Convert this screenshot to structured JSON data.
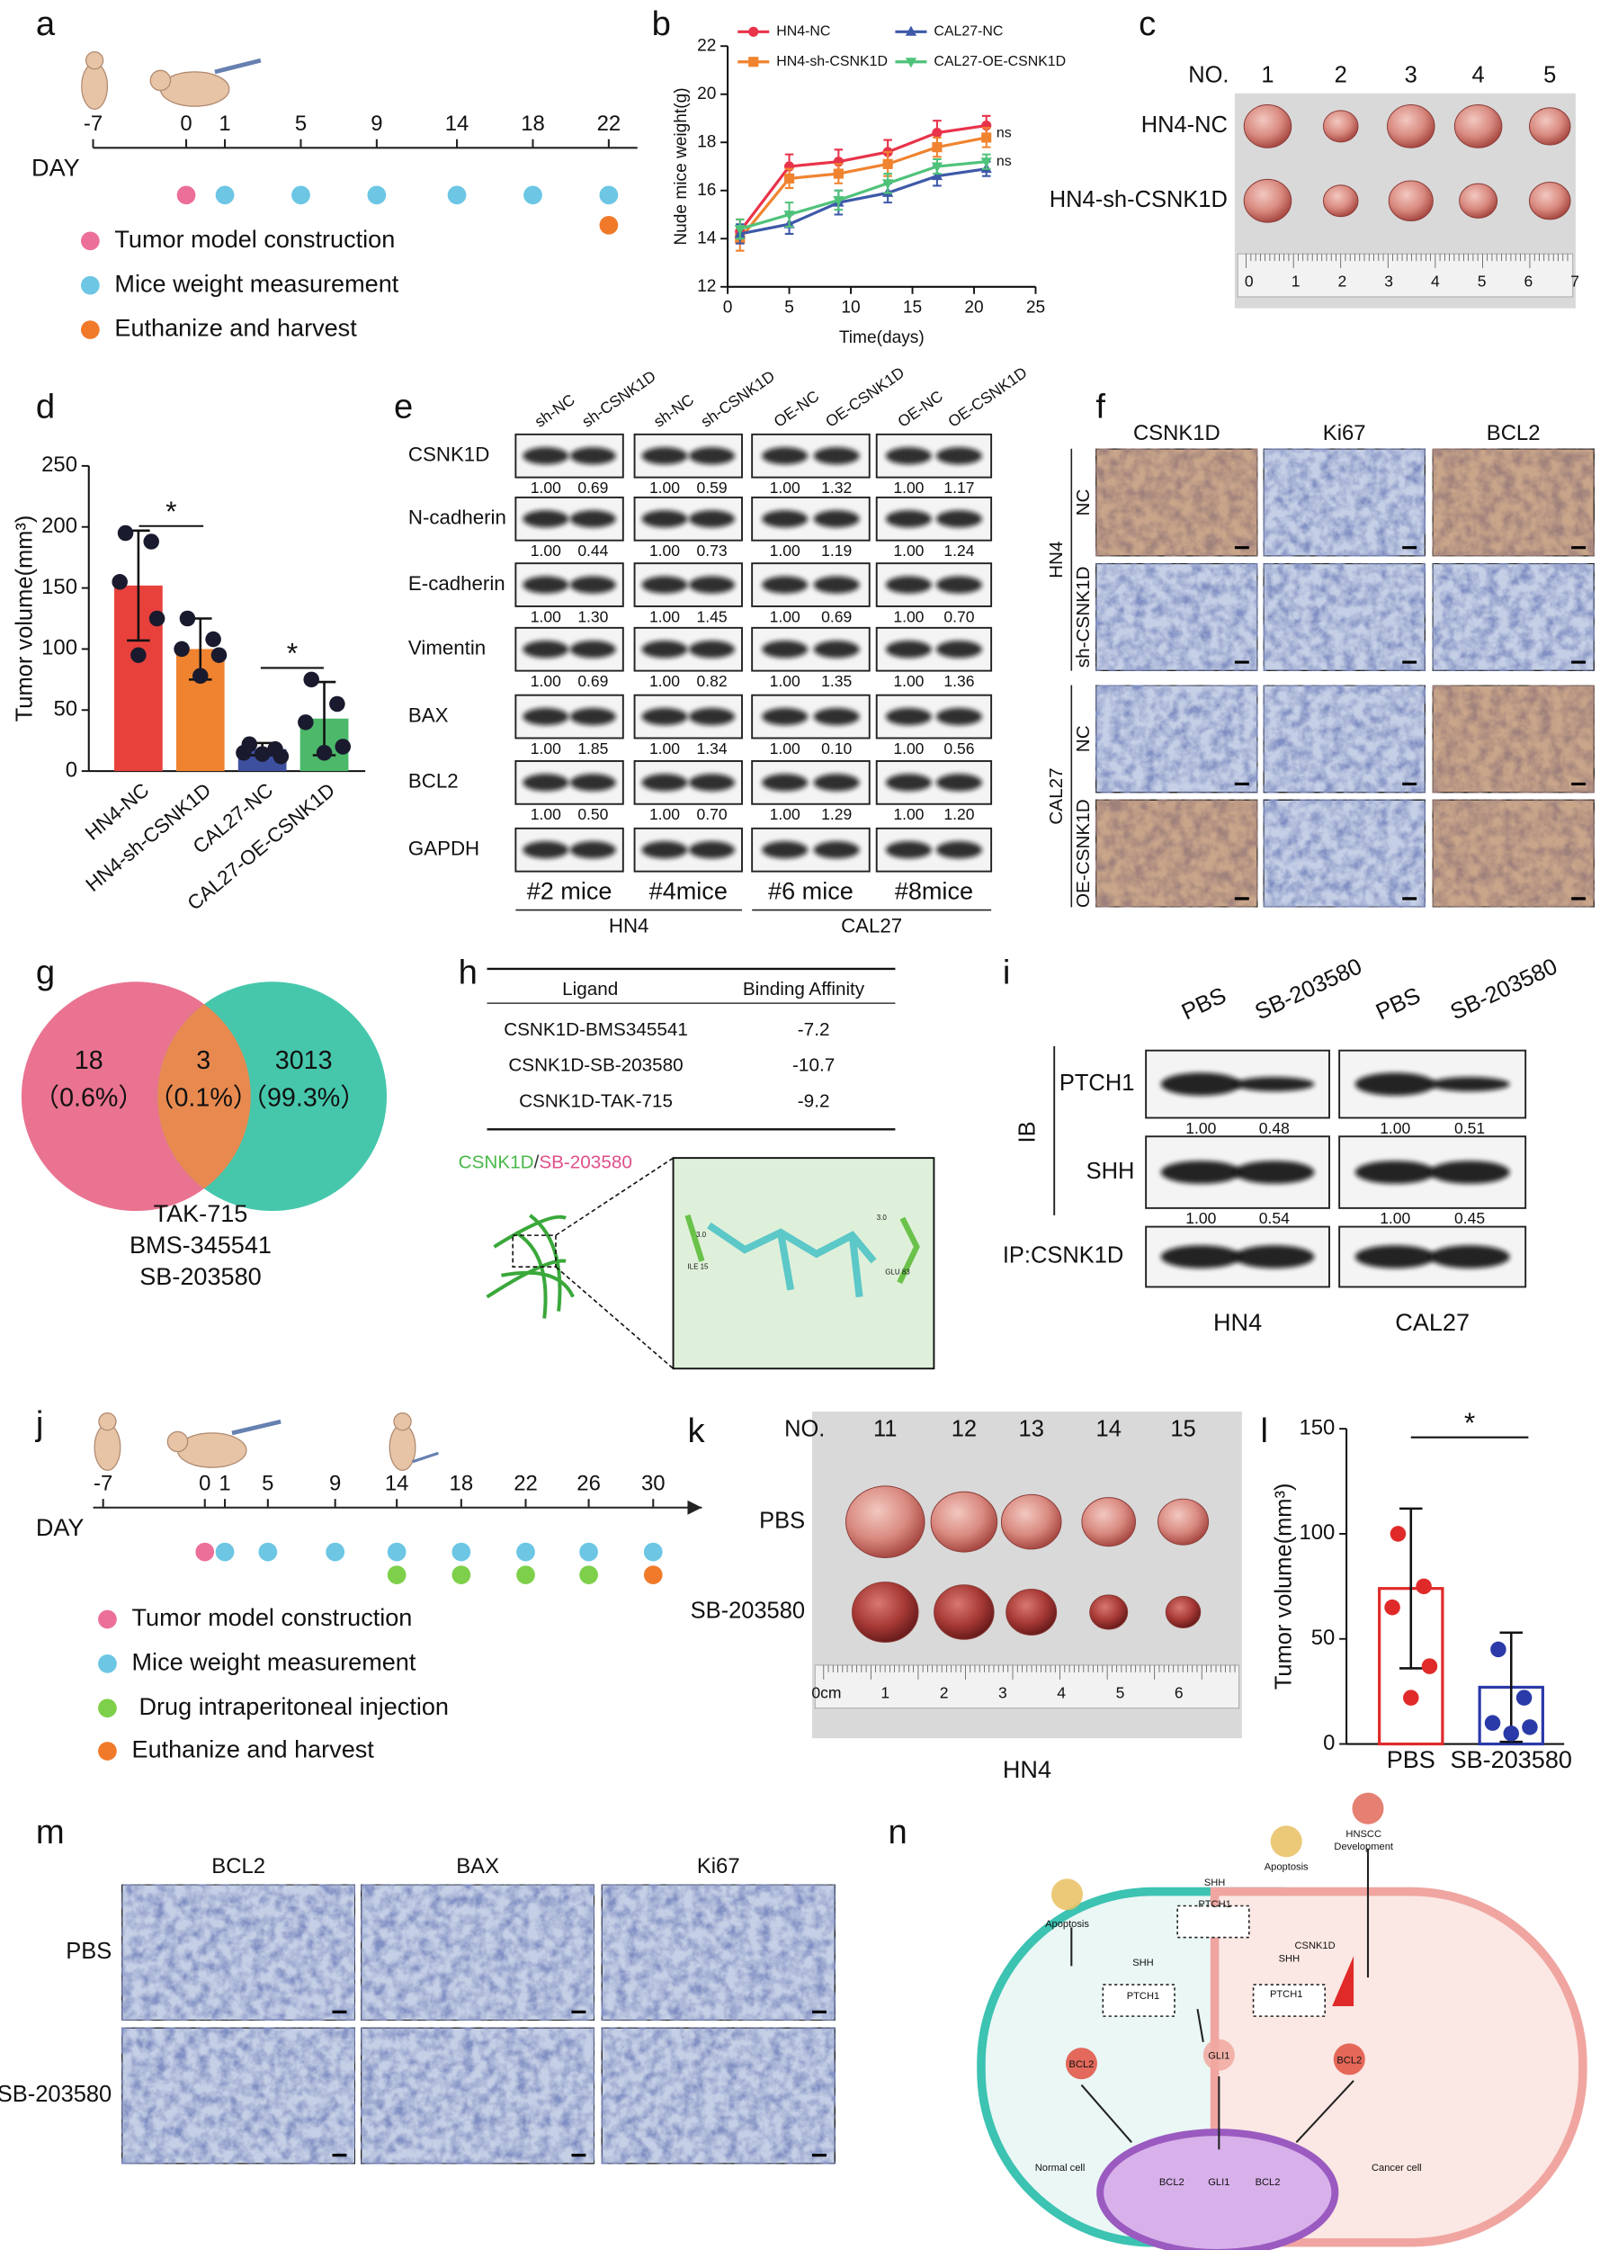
{
  "panel_labels": [
    "a",
    "b",
    "c",
    "d",
    "e",
    "f",
    "g",
    "h",
    "i",
    "j",
    "k",
    "l",
    "m",
    "n"
  ],
  "timeline_a": {
    "day_label": "DAY",
    "days": [
      "-7",
      "0",
      "1",
      "5",
      "9",
      "14",
      "18",
      "22"
    ],
    "legend": [
      "Tumor model construction",
      "Mice weight measurement",
      "Euthanize and harvest"
    ]
  },
  "photo_c": {
    "no_label": "NO.",
    "numbers": [
      "1",
      "2",
      "3",
      "4",
      "5"
    ],
    "rows": [
      "HN4-NC",
      "HN4-sh-CSNK1D"
    ],
    "ruler": [
      "0",
      "1",
      "2",
      "3",
      "4",
      "5",
      "6",
      "7"
    ]
  },
  "blot_e": {
    "columns": [
      "sh-NC",
      "sh-CSNK1D",
      "sh-NC",
      "sh-CSNK1D",
      "OE-NC",
      "OE-CSNK1D",
      "OE-NC",
      "OE-CSNK1D"
    ],
    "rows": [
      {
        "name": "CSNK1D",
        "values": [
          "1.00",
          "0.69",
          "1.00",
          "0.59",
          "1.00",
          "1.32",
          "1.00",
          "1.17"
        ]
      },
      {
        "name": "N-cadherin",
        "values": [
          "1.00",
          "0.44",
          "1.00",
          "0.73",
          "1.00",
          "1.19",
          "1.00",
          "1.24"
        ]
      },
      {
        "name": "E-cadherin",
        "values": [
          "1.00",
          "1.30",
          "1.00",
          "1.45",
          "1.00",
          "0.69",
          "1.00",
          "0.70"
        ]
      },
      {
        "name": "Vimentin",
        "values": [
          "1.00",
          "0.69",
          "1.00",
          "0.82",
          "1.00",
          "1.35",
          "1.00",
          "1.36"
        ]
      },
      {
        "name": "BAX",
        "values": [
          "1.00",
          "1.85",
          "1.00",
          "1.34",
          "1.00",
          "0.10",
          "1.00",
          "0.56"
        ]
      },
      {
        "name": "BCL2",
        "values": [
          "1.00",
          "0.50",
          "1.00",
          "0.70",
          "1.00",
          "1.29",
          "1.00",
          "1.20"
        ]
      },
      {
        "name": "GAPDH"
      }
    ],
    "mice": [
      "#2 mice",
      "#4mice",
      "#6 mice",
      "#8mice"
    ],
    "groups": [
      "HN4",
      "CAL27"
    ]
  },
  "ihc_f": {
    "columns": [
      "CSNK1D",
      "Ki67",
      "BCL2"
    ],
    "rows": [
      "NC",
      "sh-CSNK1D",
      "NC",
      "OE-CSNK1D"
    ],
    "groups": [
      "HN4",
      "CAL27"
    ]
  },
  "venn_g": {
    "sets": [
      {
        "count": "18",
        "percent": "（0.6%）"
      },
      {
        "count": "3",
        "percent": "（0.1%）"
      },
      {
        "count": "3013",
        "percent": "（99.3%）"
      }
    ],
    "drugs": [
      "TAK-715",
      "BMS-345541",
      "SB-203580"
    ]
  },
  "table_h": {
    "header": [
      "Ligand",
      "Binding Affinity"
    ],
    "rows": [
      [
        "CSNK1D-BMS345541",
        "-7.2"
      ],
      [
        "CSNK1D-SB-203580",
        "-10.7"
      ],
      [
        "CSNK1D-TAK-715",
        "-9.2"
      ]
    ],
    "protein": "CSNK1D",
    "slash": "/",
    "ligand": "SB-203580",
    "residues": [
      "ILE 15",
      "GLU 83"
    ],
    "distances": [
      "3.0",
      "3.0"
    ]
  },
  "blot_i": {
    "columns": [
      "PBS",
      "SB-203580",
      "PBS",
      "SB-203580"
    ],
    "ib": "IB",
    "rows": [
      {
        "name": "PTCH1",
        "values": [
          "1.00",
          "0.48",
          "1.00",
          "0.51"
        ]
      },
      {
        "name": "SHH",
        "values": [
          "1.00",
          "0.54",
          "1.00",
          "0.45"
        ]
      },
      {
        "name": "IP:CSNK1D"
      }
    ],
    "groups": [
      "HN4",
      "CAL27"
    ]
  },
  "timeline_j": {
    "day_label": "DAY",
    "days": [
      "-7",
      "0",
      "1",
      "5",
      "9",
      "14",
      "18",
      "22",
      "26",
      "30"
    ],
    "legend": [
      "Tumor model construction",
      "Mice weight measurement",
      "Drug intraperitoneal injection",
      "Euthanize and harvest"
    ]
  },
  "photo_k": {
    "no_label": "NO.",
    "numbers": [
      "11",
      "12",
      "13",
      "14",
      "15"
    ],
    "rows": [
      "PBS",
      "SB-203580"
    ],
    "ruler": [
      "0cm",
      "1",
      "2",
      "3",
      "4",
      "5",
      "6"
    ],
    "caption": "HN4"
  },
  "ihc_m": {
    "columns": [
      "BCL2",
      "BAX",
      "Ki67"
    ],
    "rows": [
      "PBS",
      "SB-203580"
    ]
  },
  "diagram_n": {
    "labels": [
      "Apoptosis",
      "SHH",
      "PTCH1",
      "Apoptosis",
      "HNSCC",
      "Development",
      "SHH",
      "PTCH1",
      "SHH",
      "CSNK1D",
      "PTCH1",
      "BCL2",
      "GLI1",
      "BCL2",
      "Normal cell",
      "BCL2",
      "GLI1",
      "BCL2",
      "Cancer cell"
    ]
  },
  "chart_data": [
    {
      "type": "line",
      "xlabel": "Time(days)",
      "ylabel": "Nude mice weight(g)",
      "x": [
        1,
        5,
        9,
        13,
        17,
        21
      ],
      "xlim": [
        0,
        25
      ],
      "xticks": [
        0,
        5,
        10,
        15,
        20,
        25
      ],
      "ylim": [
        12,
        22
      ],
      "yticks": [
        12,
        14,
        16,
        18,
        20,
        22
      ],
      "series": [
        {
          "name": "HN4-NC",
          "color": "#e8334a",
          "marker": "circle",
          "values": [
            14.3,
            17.0,
            17.2,
            17.6,
            18.4,
            18.7
          ],
          "errors": [
            0.5,
            0.5,
            0.5,
            0.5,
            0.5,
            0.4
          ]
        },
        {
          "name": "HN4-sh-CSNK1D",
          "color": "#f0832f",
          "marker": "square",
          "values": [
            14.0,
            16.5,
            16.7,
            17.1,
            17.8,
            18.2
          ],
          "errors": [
            0.5,
            0.4,
            0.4,
            0.5,
            0.4,
            0.4
          ]
        },
        {
          "name": "CAL27-NC",
          "color": "#3d59a8",
          "marker": "triangle",
          "values": [
            14.2,
            14.6,
            15.5,
            15.9,
            16.6,
            16.9
          ],
          "errors": [
            0.4,
            0.4,
            0.5,
            0.4,
            0.4,
            0.3
          ]
        },
        {
          "name": "CAL27-OE-CSNK1D",
          "color": "#4fc27a",
          "marker": "triangle-down",
          "values": [
            14.4,
            15.0,
            15.6,
            16.3,
            17.0,
            17.2
          ],
          "errors": [
            0.4,
            0.5,
            0.4,
            0.4,
            0.3,
            0.3
          ]
        }
      ],
      "annotations": [
        "ns",
        "ns"
      ]
    },
    {
      "type": "bar",
      "ylabel": "Tumor volume(mm³)",
      "categories": [
        "HN4-NC",
        "HN4-sh-CSNK1D",
        "CAL27-NC",
        "CAL27-OE-CSNK1D"
      ],
      "values": [
        152,
        100,
        18,
        43
      ],
      "errors": [
        45,
        25,
        5,
        30
      ],
      "colors": [
        "#e8413c",
        "#f0832f",
        "#3d50a0",
        "#4cb86a"
      ],
      "filled": true,
      "points": [
        [
          195,
          188,
          155,
          125,
          95
        ],
        [
          125,
          108,
          100,
          95,
          78
        ],
        [
          22,
          18,
          15,
          12,
          14
        ],
        [
          75,
          55,
          40,
          20,
          15
        ]
      ],
      "ylim": [
        0,
        250
      ],
      "yticks": [
        0,
        50,
        100,
        150,
        200,
        250
      ],
      "annotations": [
        "*",
        "*"
      ]
    },
    {
      "type": "bar",
      "ylabel": "Tumor volume(mm³)",
      "categories": [
        "PBS",
        "SB-203580"
      ],
      "values": [
        74,
        27
      ],
      "errors": [
        38,
        26
      ],
      "colors": [
        "#e02a2a",
        "#2a3aa8"
      ],
      "filled": false,
      "points": [
        [
          100,
          75,
          65,
          37,
          22
        ],
        [
          45,
          22,
          10,
          8,
          5
        ]
      ],
      "ylim": [
        0,
        150
      ],
      "yticks": [
        0,
        50,
        100,
        150
      ],
      "annotations": [
        "*"
      ]
    }
  ]
}
